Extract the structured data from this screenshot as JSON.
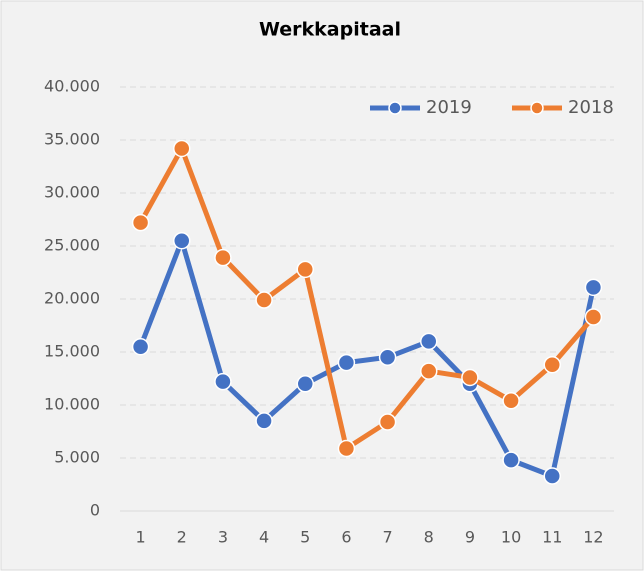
{
  "chart_data": {
    "type": "line",
    "title": "Werkkapitaal",
    "categories": [
      "1",
      "2",
      "3",
      "4",
      "5",
      "6",
      "7",
      "8",
      "9",
      "10",
      "11",
      "12"
    ],
    "series": [
      {
        "name": "2019",
        "color": "#4472c4",
        "values": [
          15500,
          25500,
          12200,
          8500,
          12000,
          14000,
          14500,
          16000,
          12000,
          4800,
          3300,
          21100
        ]
      },
      {
        "name": "2018",
        "color": "#ed7d31",
        "values": [
          27200,
          34200,
          23900,
          19900,
          22800,
          5900,
          8400,
          13200,
          12600,
          10400,
          13800,
          18300
        ]
      }
    ],
    "ylim": [
      0,
      40000
    ],
    "yticks": [
      0,
      {
        "value": 5000,
        "label": "5.000"
      },
      {
        "value": 10000,
        "label": "10.000"
      },
      {
        "value": 15000,
        "label": "15.000"
      },
      {
        "value": 20000,
        "label": "20.000"
      },
      {
        "value": 25000,
        "label": "25.000"
      },
      {
        "value": 30000,
        "label": "30.000"
      },
      {
        "value": 35000,
        "label": "35.000"
      },
      {
        "value": 40000,
        "label": "40.000"
      }
    ],
    "grid": true,
    "legend": "top-right"
  }
}
